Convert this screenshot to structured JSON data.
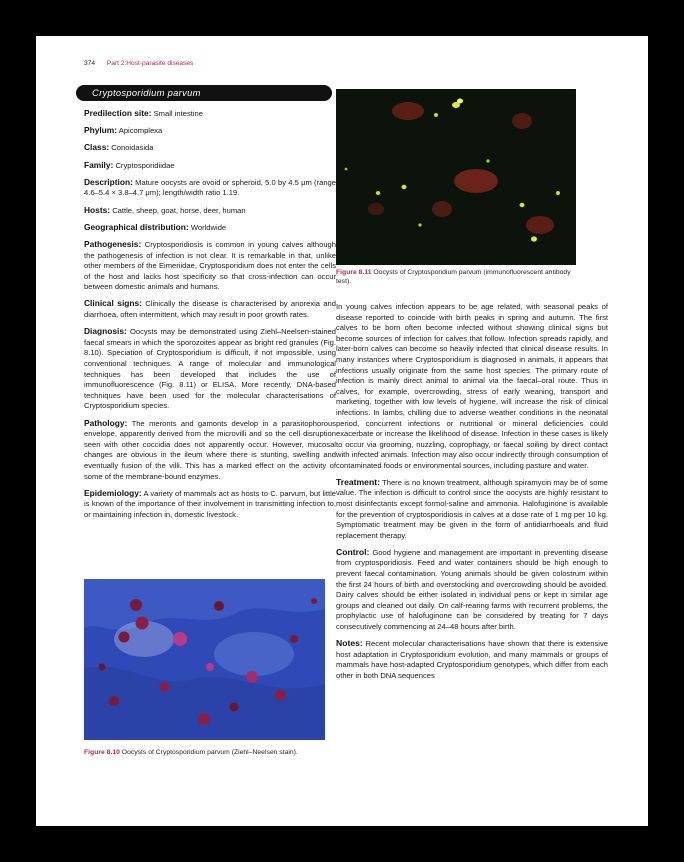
{
  "header": {
    "page_number": "374",
    "part_title": "Part 2:Host-parasite diseases"
  },
  "title": "Cryptosporidium parvum",
  "fields": [
    {
      "label": "Predilection site:",
      "text": "Small intestine"
    },
    {
      "label": "Phylum:",
      "text": "Apicomplexa"
    },
    {
      "label": "Class:",
      "text": "Conoidasida"
    },
    {
      "label": "Family:",
      "text": "Cryptosporidiidae"
    },
    {
      "label": "Description:",
      "text": "Mature oocysts are ovoid or spheroid, 5.0 by 4.5 μm (range 4.6–5.4 × 3.8–4.7 μm); length/width ratio 1.19."
    },
    {
      "label": "Hosts:",
      "text": "Cattle, sheep, goat, horse, deer, human"
    },
    {
      "label": "Geographical distribution:",
      "text": "Worldwide"
    },
    {
      "label": "Pathogenesis:",
      "text": "Cryptosporidiosis is common in young calves although the pathogenesis of infection is not clear. It is remarkable in that, unlike other members of the Eimeriidae, Cryptosporidium does not enter the cells of the host and lacks host specificity so that cross-infection can occur between domestic animals and humans."
    },
    {
      "label": "Clinical signs:",
      "text": "Clinically the disease is characterised by anorexia and diarrhoea, often intermittent, which may result in poor growth rates."
    },
    {
      "label": "Diagnosis:",
      "text": "Oocysts may be demonstrated using Ziehl–Neelsen-stained faecal smears in which the sporozoites appear as bright red granules (Fig. 8.10). Speciation of Cryptosporidium is difficult, if not impossible, using conventional techniques. A range of molecular and immunological techniques has been developed that includes the use of immunofluorescence (Fig. 8.11) or ELISA. More recently, DNA-based techniques have been used for the molecular characterisations of Cryptosporidium species."
    },
    {
      "label": "Pathology:",
      "text": "The meronts and gamonts develop in a parasitophorous envelope, apparently derived from the microvilli and so the cell disruption seen with other coccidia does not apparently occur. However, mucosal changes are obvious in the ileum where there is stunting, swelling and eventually fusion of the villi. This has a marked effect on the activity of some of the membrane-bound enzymes."
    },
    {
      "label": "Epidemiology:",
      "text": "A variety of mammals act as hosts to C. parvum, but little is known of the importance of their involvement in transmitting infection to, or maintaining infection in, domestic livestock."
    }
  ],
  "right_paragraphs": [
    {
      "label": "",
      "text": "In young calves infection appears to be age related, with seasonal peaks of disease reported to coincide with birth peaks in spring and autumn. The first calves to be born often become infected without showing clinical signs but become sources of infection for calves that follow. Infection spreads rapidly, and later-born calves can become so heavily infected that clinical disease results. In many instances where Cryptosporidium is diagnosed in animals, it appears that infections usually originate from the same host species. The primary route of infection is mainly direct animal to animal via the faecal–oral route. Thus in calves, for example, overcrowding, stress of early weaning, transport and marketing, together with low levels of hygiene, will increase the risk of clinical infections. In lambs, chilling due to adverse weather conditions in the neonatal period, concurrent infections or nutritional or mineral deficiencies could exacerbate or increase the likelihood of disease. Infection in these cases is likely to occur via grooming, nuzzling, coprophagy, or faecal soiling by direct contact with infected animals. Infection may also occur indirectly through consumption of contaminated foods or environmental sources, including pasture and water."
    },
    {
      "label": "Treatment:",
      "text": "There is no known treatment, although spiramycin may be of some value. The infection is difficult to control since the oocysts are highly resistant to most disinfectants except formol-saline and ammonia. Halofuginone is available for the prevention of cryptosporidiosis in calves at a dose rate of 1 mg per 10 kg. Symptomatic treatment may be given in the form of antidiarrhoeals and fluid replacement therapy."
    },
    {
      "label": "Control:",
      "text": "Good hygiene and management are important in preventing disease from cryptosporidiosis. Feed and water containers should be high enough to prevent faecal contamination. Young animals should be given colostrum within the first 24 hours of birth and overstocking and overcrowding should be avoided. Dairy calves should be either isolated in individual pens or kept in similar age groups and cleaned out daily. On calf-rearing farms with recurrent problems, the prophylactic use of halofuginone can be considered by treating for 7 days consecutively commencing at 24–48 hours after birth."
    },
    {
      "label": "Notes:",
      "text": "Recent molecular characterisations have shown that there is extensive host adaptation in Cryptosporidium evolution, and many mammals or groups of mammals have host-adapted Cryptosporidium genotypes, which differ from each other in both DNA sequences"
    }
  ],
  "figure_right_caption": {
    "label": "Figure 8.11",
    "text": "Oocysts of Cryptosporidium parvum (immunofluorescent antibody test)."
  },
  "figure_left_caption": {
    "label": "Figure 8.10",
    "text": "Oocysts of Cryptosporidium parvum (Ziehl–Neelsen stain)."
  },
  "colors": {
    "accent": "#b0245a",
    "title_bar": "#111111",
    "stain_blue": "#2f49b6",
    "fluor_green": "#c8e020",
    "fluor_red": "#c8402a"
  }
}
